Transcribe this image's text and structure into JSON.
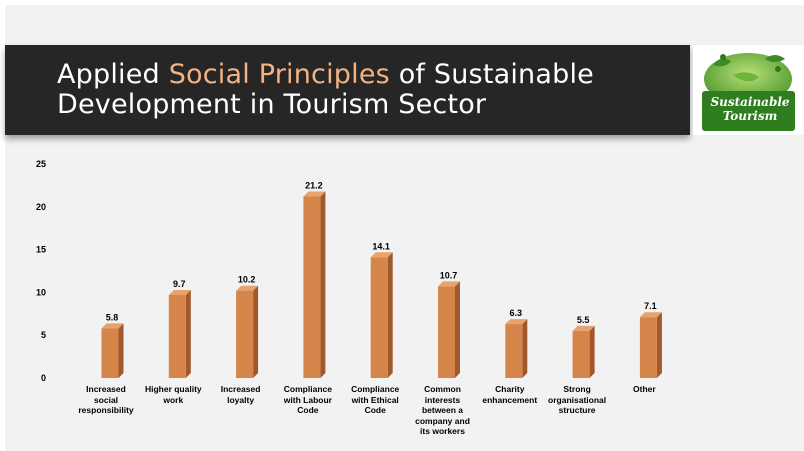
{
  "title": {
    "part1": "Applied ",
    "highlight": "Social Principles",
    "part2": " of Sustainable",
    "line2": "Development in Tourism Sector"
  },
  "logo": {
    "line1": "Sustainable",
    "line2": "Tourism",
    "icon": "globe-leaves-icon"
  },
  "colors": {
    "bar_front": "#d6854a",
    "bar_side": "#a0592a",
    "bar_top": "#e8a26d",
    "title_band": "#262626",
    "title_highlight": "#f4b183"
  },
  "chart_data": {
    "type": "bar",
    "title": "",
    "xlabel": "",
    "ylabel": "",
    "ylim": [
      0,
      25
    ],
    "yticks": [
      0,
      5,
      10,
      15,
      20,
      25
    ],
    "grid": false,
    "legend": "none",
    "categories": [
      "Increased social responsibility",
      "Higher quality work",
      "Increased loyalty",
      "Compliance with Labour Code",
      "Compliance with Ethical Code",
      "Common interests between a company and its workers",
      "Charity enhancement",
      "Strong organisational structure",
      "Other"
    ],
    "category_lines": [
      [
        "Increased",
        "social",
        "responsibility"
      ],
      [
        "Higher quality",
        "work"
      ],
      [
        "Increased",
        "loyalty"
      ],
      [
        "Compliance",
        "with Labour",
        "Code"
      ],
      [
        "Compliance",
        "with Ethical",
        "Code"
      ],
      [
        "Common",
        "interests",
        "between a",
        "company and",
        "its workers"
      ],
      [
        "Charity",
        "enhancement"
      ],
      [
        "Strong",
        "organisational",
        "structure"
      ],
      [
        "Other"
      ]
    ],
    "values": [
      5.8,
      9.7,
      10.2,
      21.2,
      14.1,
      10.7,
      6.3,
      5.5,
      7.1
    ],
    "data_labels": [
      "5.8",
      "9.7",
      "10.2",
      "21.2",
      "14.1",
      "10.7",
      "6.3",
      "5.5",
      "7.1"
    ]
  }
}
